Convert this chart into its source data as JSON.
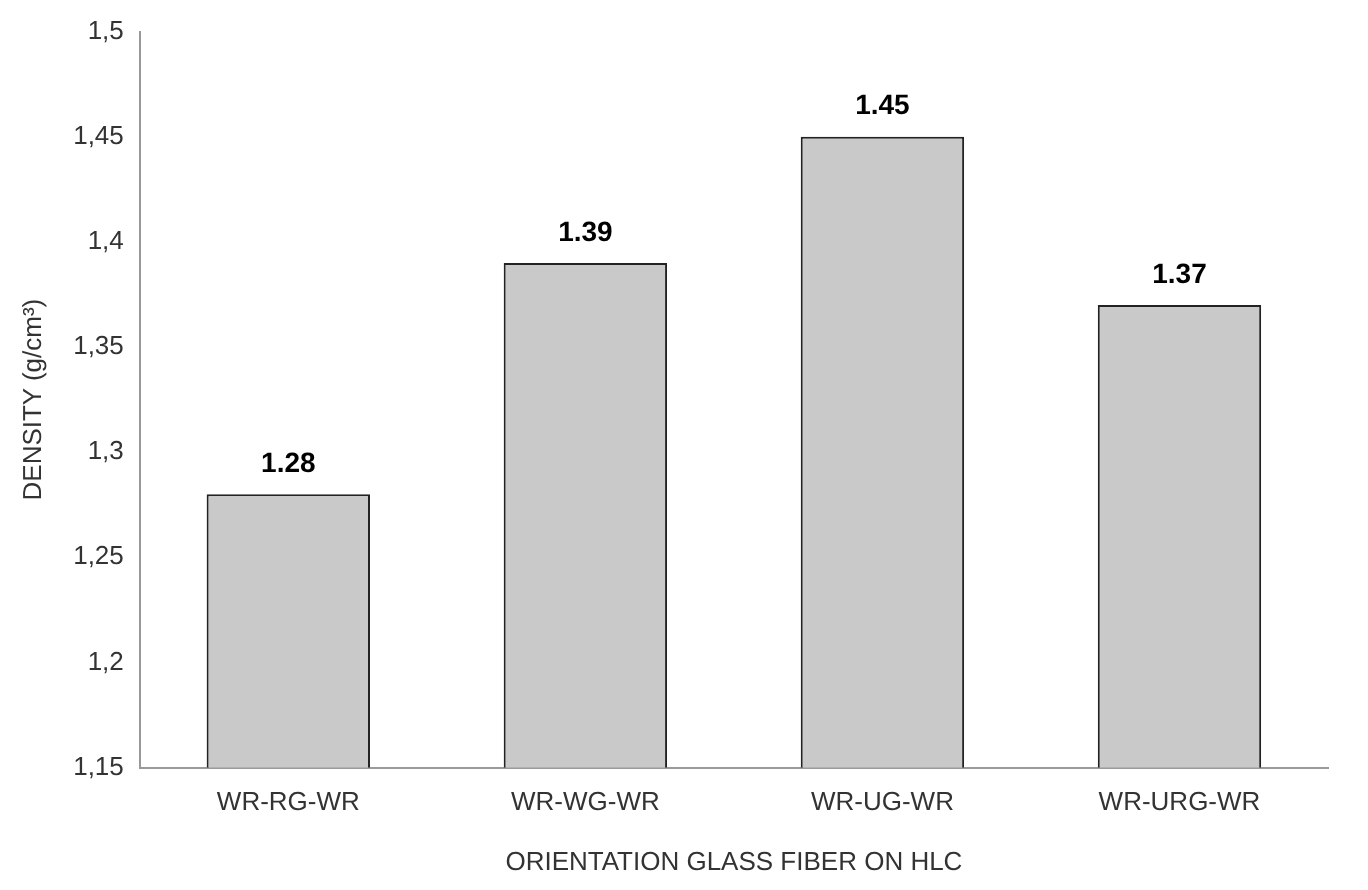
{
  "chart_data": {
    "type": "bar",
    "xlabel": "ORIENTATION GLASS FIBER ON HLC",
    "ylabel": "DENSITY (g/cm³)",
    "categories": [
      "WR-RG-WR",
      "WR-WG-WR",
      "WR-UG-WR",
      "WR-URG-WR"
    ],
    "values": [
      1.28,
      1.39,
      1.45,
      1.37
    ],
    "color": "#c9c9c9",
    "ylim": [
      1.15,
      1.5
    ],
    "yticks": [
      {
        "value": 1.15,
        "label": "1,15"
      },
      {
        "value": 1.2,
        "label": "1,2"
      },
      {
        "value": 1.25,
        "label": "1,25"
      },
      {
        "value": 1.3,
        "label": "1,3"
      },
      {
        "value": 1.35,
        "label": "1,35"
      },
      {
        "value": 1.4,
        "label": "1,4"
      },
      {
        "value": 1.45,
        "label": "1,45"
      },
      {
        "value": 1.5,
        "label": "1,5"
      }
    ],
    "data_labels": true,
    "grid": false,
    "legend": false
  }
}
